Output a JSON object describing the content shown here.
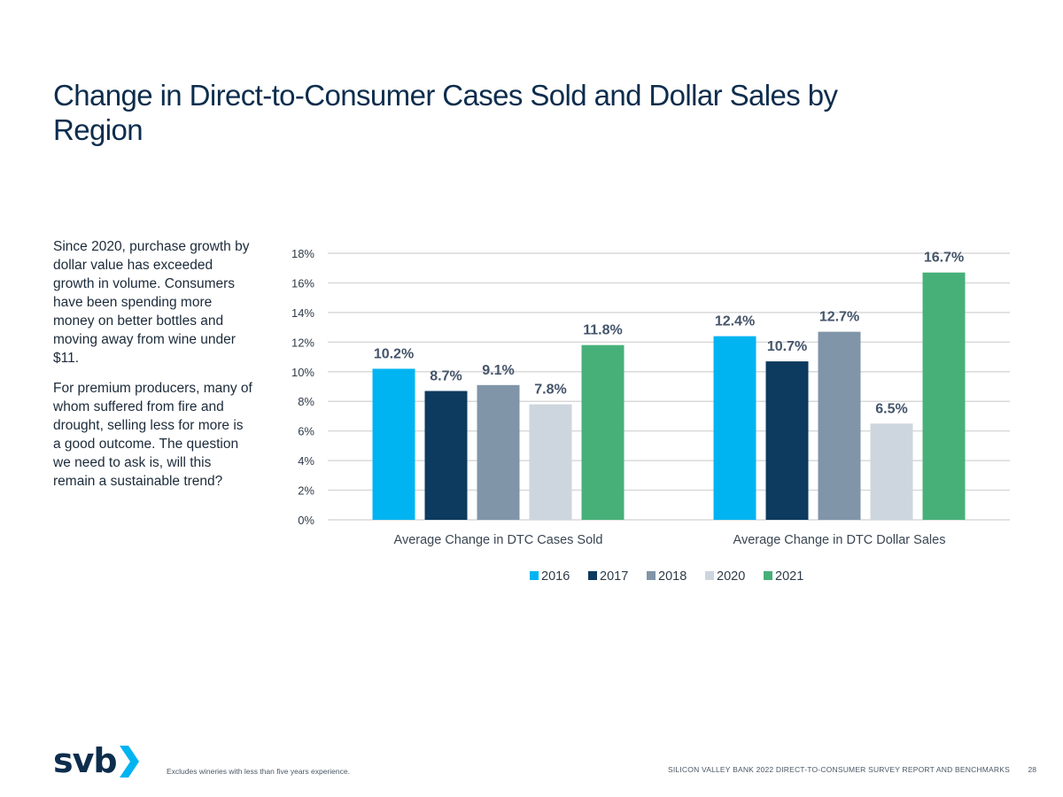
{
  "title": "Change in Direct-to-Consumer Cases Sold and Dollar Sales by Region",
  "body": {
    "paragraph1": "Since 2020, purchase growth by dollar value has exceeded growth in volume. Consumers have been spending more money on better bottles and moving away from wine under $11.",
    "paragraph2": "For premium producers, many of whom suffered from fire and drought, selling less for more is a good outcome. The question we need to ask is, will this remain a sustainable trend?"
  },
  "chart_data": {
    "type": "bar",
    "categories": [
      "Average Change in DTC Cases Sold",
      "Average Change in DTC Dollar Sales"
    ],
    "series": [
      {
        "name": "2016",
        "color": "#00b4f1",
        "values": [
          10.2,
          12.4
        ],
        "labels": [
          "10.2%",
          "12.4%"
        ]
      },
      {
        "name": "2017",
        "color": "#0d3a5f",
        "values": [
          8.7,
          10.7
        ],
        "labels": [
          "8.7%",
          "10.7%"
        ]
      },
      {
        "name": "2018",
        "color": "#8095a8",
        "values": [
          9.1,
          12.7
        ],
        "labels": [
          "9.1%",
          "12.7%"
        ]
      },
      {
        "name": "2020",
        "color": "#cdd6de",
        "values": [
          7.8,
          6.5
        ],
        "labels": [
          "7.8%",
          "6.5%"
        ]
      },
      {
        "name": "2021",
        "color": "#47b079",
        "values": [
          11.8,
          16.7
        ],
        "labels": [
          "11.8%",
          "16.7%"
        ]
      }
    ],
    "y_ticks": [
      "0%",
      "2%",
      "4%",
      "6%",
      "8%",
      "10%",
      "12%",
      "14%",
      "16%",
      "18%"
    ],
    "ylim": [
      0,
      18
    ],
    "grid": true,
    "legend": "bottom",
    "gridline_color": "#d9d9d9",
    "label_color": "#44546a"
  },
  "logo": {
    "text": "svb",
    "accent_color": "#00b4f1"
  },
  "footnote": "Excludes wineries with less than five years experience.",
  "footer": {
    "report": "SILICON VALLEY BANK 2022 DIRECT-TO-CONSUMER SURVEY REPORT AND BENCHMARKS",
    "page": "28"
  }
}
